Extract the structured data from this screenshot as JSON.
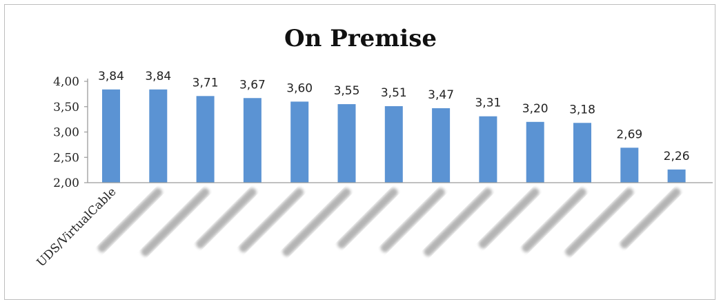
{
  "chart_data": {
    "type": "bar",
    "title": "On Premise",
    "categories": [
      "UDS/VirtualCable",
      "",
      "",
      "",
      "",
      "",
      "",
      "",
      "",
      "",
      "",
      "",
      ""
    ],
    "values": [
      3.84,
      3.84,
      3.71,
      3.67,
      3.6,
      3.55,
      3.51,
      3.47,
      3.31,
      3.2,
      3.18,
      2.69,
      2.26
    ],
    "data_labels": [
      "3,84",
      "3,84",
      "3,71",
      "3,67",
      "3,60",
      "3,55",
      "3,51",
      "3,47",
      "3,31",
      "3,20",
      "3,18",
      "2,69",
      "2,26"
    ],
    "yticks": [
      2.0,
      2.5,
      3.0,
      3.5,
      4.0
    ],
    "ytick_labels": [
      "2,00",
      "2,50",
      "3,00",
      "3,50",
      "4,00"
    ],
    "ylim": [
      2.0,
      4.0
    ],
    "xlabel": "",
    "ylabel": "",
    "grid": false,
    "legend": "none",
    "bar_color": "#5b93d3",
    "category_labels_blurred": true
  }
}
